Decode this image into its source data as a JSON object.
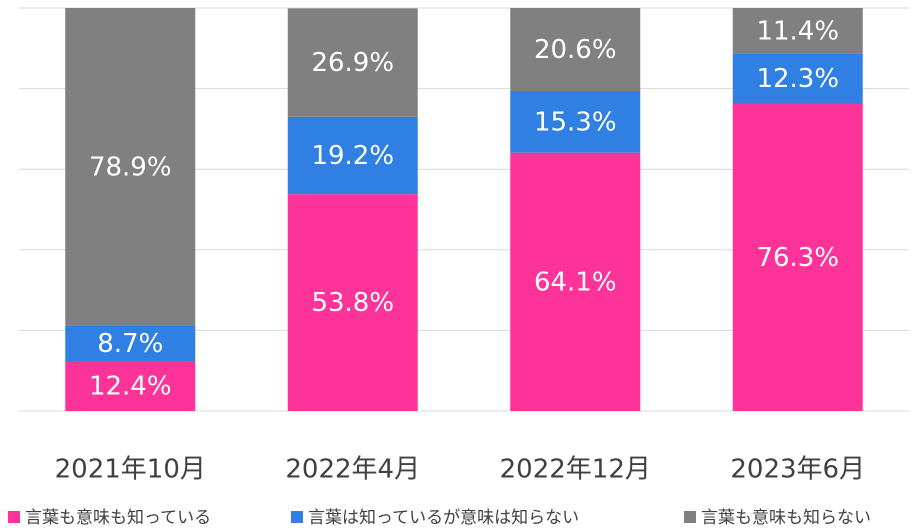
{
  "chart_data": {
    "type": "stacked_bar",
    "categories": [
      "2021年10月",
      "2022年4月",
      "2022年12月",
      "2023年6月"
    ],
    "series": [
      {
        "name": "言葉も意味も知っている",
        "color": "#fe3399",
        "values": [
          12.4,
          53.8,
          64.1,
          76.3
        ],
        "value_labels": [
          "12.4%",
          "53.8%",
          "64.1%",
          "76.3%"
        ]
      },
      {
        "name": "言葉は知っているが意味は知らない",
        "color": "#2f80e2",
        "values": [
          8.7,
          19.2,
          15.3,
          12.3
        ],
        "value_labels": [
          "8.7%",
          "19.2%",
          "15.3%",
          "12.3%"
        ]
      },
      {
        "name": "言葉も意味も知らない",
        "color": "#808080",
        "values": [
          78.9,
          26.9,
          20.6,
          11.4
        ],
        "value_labels": [
          "78.9%",
          "26.9%",
          "20.6%",
          "11.4%"
        ]
      }
    ],
    "ylim": [
      0,
      100
    ],
    "yticks": [
      0,
      20,
      40,
      60,
      80,
      100
    ],
    "grid": true
  }
}
